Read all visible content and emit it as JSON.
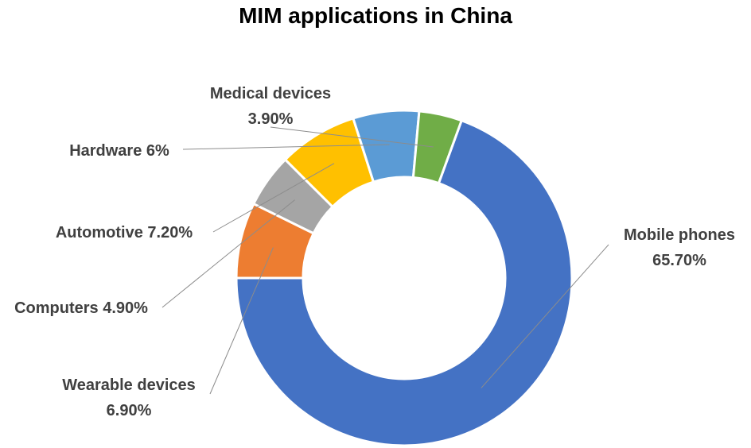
{
  "chart_data": {
    "type": "donut",
    "title": "MIM applications in China",
    "legend": "none",
    "segments": [
      {
        "name": "Mobile phones",
        "value": 65.7,
        "label_lines": [
          "Mobile phones",
          "65.70%"
        ],
        "color": "#4472C4"
      },
      {
        "name": "Wearable devices",
        "value": 6.9,
        "label_lines": [
          "Wearable devices",
          "6.90%"
        ],
        "color": "#ED7D31"
      },
      {
        "name": "Computers",
        "value": 4.9,
        "label_lines": [
          "Computers 4.90%"
        ],
        "color": "#A5A5A5"
      },
      {
        "name": "Automotive",
        "value": 7.2,
        "label_lines": [
          "Automotive 7.20%"
        ],
        "color": "#FFC000"
      },
      {
        "name": "Hardware",
        "value": 6.0,
        "label_lines": [
          "Hardware 6%"
        ],
        "color": "#5B9BD5"
      },
      {
        "name": "Medical devices",
        "value": 3.9,
        "label_lines": [
          "Medical devices",
          "3.90%"
        ],
        "color": "#70AD47"
      }
    ]
  }
}
